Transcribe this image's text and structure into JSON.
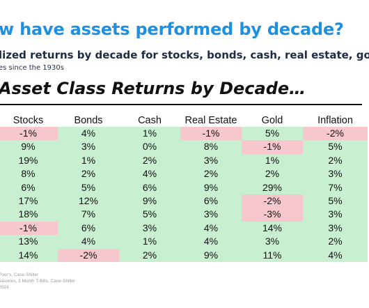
{
  "header": {
    "headline": "w have assets performed by decade?",
    "subhead": "lized returns by decade for stocks, bonds, cash, real estate, gold,",
    "subsub": "es since the 1930s"
  },
  "chart_data": {
    "type": "table",
    "title": "Asset Class Returns by Decade…",
    "columns": [
      "Stocks",
      "Bonds",
      "Cash",
      "Real Estate",
      "Gold",
      "Inflation"
    ],
    "rows": [
      [
        "-1%",
        "4%",
        "1%",
        "-1%",
        "5%",
        "-2%"
      ],
      [
        "9%",
        "3%",
        "0%",
        "8%",
        "-1%",
        "5%"
      ],
      [
        "19%",
        "1%",
        "2%",
        "3%",
        "1%",
        "2%"
      ],
      [
        "8%",
        "2%",
        "4%",
        "2%",
        "2%",
        "3%"
      ],
      [
        "6%",
        "5%",
        "6%",
        "9%",
        "29%",
        "7%"
      ],
      [
        "17%",
        "12%",
        "9%",
        "6%",
        "-2%",
        "5%"
      ],
      [
        "18%",
        "7%",
        "5%",
        "3%",
        "-3%",
        "3%"
      ],
      [
        "-1%",
        "6%",
        "3%",
        "4%",
        "14%",
        "3%"
      ],
      [
        "13%",
        "4%",
        "1%",
        "4%",
        "3%",
        "2%"
      ],
      [
        "14%",
        "-2%",
        "2%",
        "9%",
        "11%",
        "4%"
      ]
    ],
    "colors": {
      "positive": "#c8efd0",
      "negative": "#f6c7cd"
    }
  },
  "source": {
    "line1": "Poor's, Case-Shiller",
    "line2": "easuries, 3 Month T-Bills, Case-Shiller",
    "line3": "2024"
  },
  "colors": {
    "headline": "#1e90e0",
    "subhead": "#1f2a44"
  }
}
